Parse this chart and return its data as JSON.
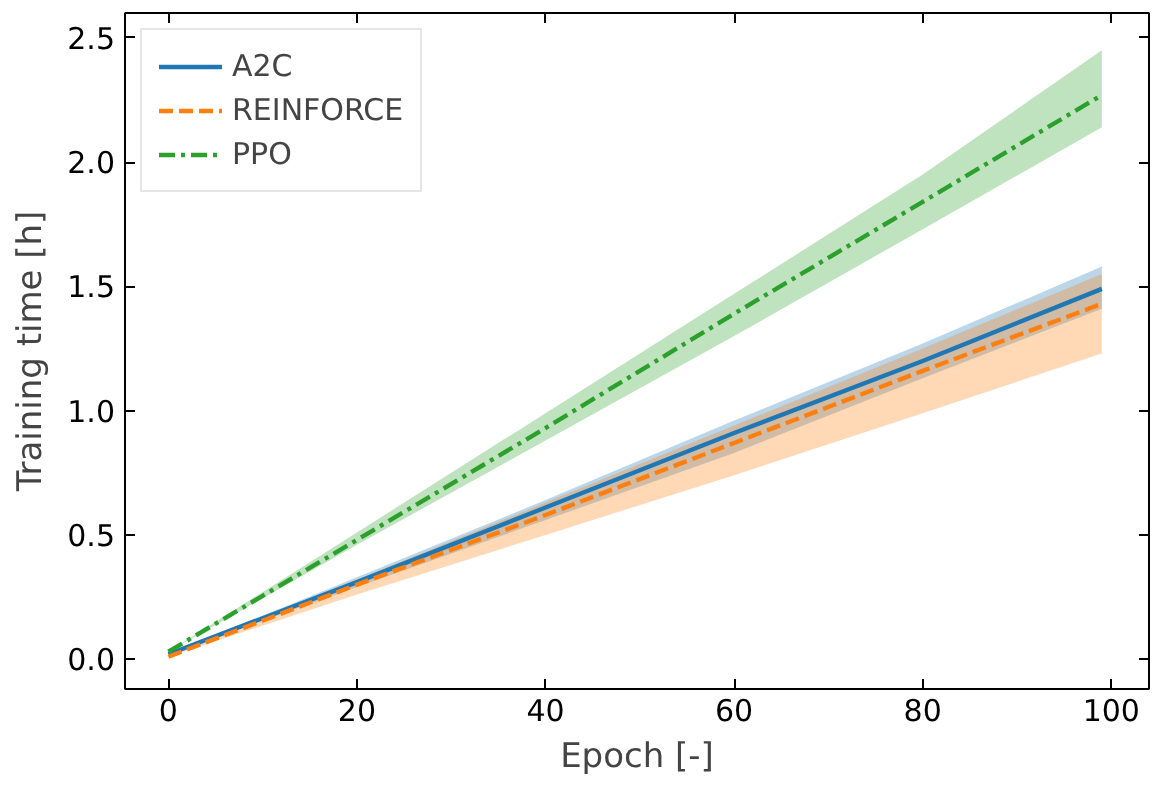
{
  "chart_data": {
    "type": "line",
    "xlabel": "Epoch [-]",
    "ylabel": "Training time [h]",
    "x": [
      0,
      20,
      40,
      60,
      80,
      99
    ],
    "series": [
      {
        "name": "A2C",
        "color": "#1f77b4",
        "line_style": "solid",
        "values": [
          0.02,
          0.31,
          0.61,
          0.91,
          1.2,
          1.49
        ],
        "lower": [
          0.02,
          0.29,
          0.56,
          0.83,
          1.13,
          1.41
        ],
        "upper": [
          0.02,
          0.33,
          0.64,
          0.96,
          1.27,
          1.58
        ]
      },
      {
        "name": "REINFORCE",
        "color": "#ff7f0e",
        "line_style": "dashed",
        "values": [
          0.01,
          0.3,
          0.58,
          0.87,
          1.16,
          1.43
        ],
        "lower": [
          0.01,
          0.26,
          0.5,
          0.74,
          0.99,
          1.23
        ],
        "upper": [
          0.01,
          0.32,
          0.63,
          0.94,
          1.25,
          1.55
        ]
      },
      {
        "name": "PPO",
        "color": "#2ca02c",
        "line_style": "dashdot",
        "values": [
          0.03,
          0.48,
          0.93,
          1.39,
          1.84,
          2.27
        ],
        "lower": [
          0.03,
          0.46,
          0.88,
          1.3,
          1.73,
          2.14
        ],
        "upper": [
          0.03,
          0.51,
          0.99,
          1.47,
          1.95,
          2.45
        ]
      }
    ],
    "xlim": [
      -4.6,
      104
    ],
    "ylim": [
      -0.12,
      2.6
    ],
    "xticks": [
      0,
      20,
      40,
      60,
      80,
      100
    ],
    "yticks": [
      {
        "value": 0,
        "label": "0.0"
      },
      {
        "value": 0.5,
        "label": "0.5"
      },
      {
        "value": 1,
        "label": "1.0"
      },
      {
        "value": 1.5,
        "label": "1.5"
      },
      {
        "value": 2,
        "label": "2.0"
      },
      {
        "value": 2.5,
        "label": "2.5"
      }
    ],
    "grid": false,
    "legend": "top left",
    "marker": "none"
  }
}
